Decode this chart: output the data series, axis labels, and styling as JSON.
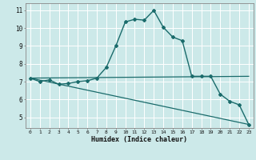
{
  "title": "",
  "xlabel": "Humidex (Indice chaleur)",
  "ylabel": "",
  "background_color": "#cce9e9",
  "grid_color": "#b0d0d0",
  "line_color": "#1a6b6b",
  "xlim": [
    -0.5,
    23.5
  ],
  "ylim": [
    4.4,
    11.4
  ],
  "xticks": [
    0,
    1,
    2,
    3,
    4,
    5,
    6,
    7,
    8,
    9,
    10,
    11,
    12,
    13,
    14,
    15,
    16,
    17,
    18,
    19,
    20,
    21,
    22,
    23
  ],
  "yticks": [
    5,
    6,
    7,
    8,
    9,
    10,
    11
  ],
  "series": [
    {
      "x": [
        0,
        1,
        2,
        3,
        4,
        5,
        6,
        7,
        8,
        9,
        10,
        11,
        12,
        13,
        14,
        15,
        16,
        17,
        18,
        19,
        20,
        21,
        22,
        23
      ],
      "y": [
        7.2,
        7.0,
        7.1,
        6.85,
        6.9,
        7.0,
        7.05,
        7.2,
        7.8,
        9.0,
        10.35,
        10.5,
        10.45,
        11.0,
        10.05,
        9.5,
        9.3,
        7.3,
        7.3,
        7.3,
        6.3,
        5.9,
        5.7,
        4.6
      ],
      "marker": "D",
      "markersize": 2.0,
      "linewidth": 1.0
    },
    {
      "x": [
        0,
        23
      ],
      "y": [
        7.2,
        7.3
      ],
      "marker": null,
      "markersize": 0,
      "linewidth": 0.9
    },
    {
      "x": [
        0,
        23
      ],
      "y": [
        7.2,
        4.6
      ],
      "marker": null,
      "markersize": 0,
      "linewidth": 0.9
    }
  ]
}
